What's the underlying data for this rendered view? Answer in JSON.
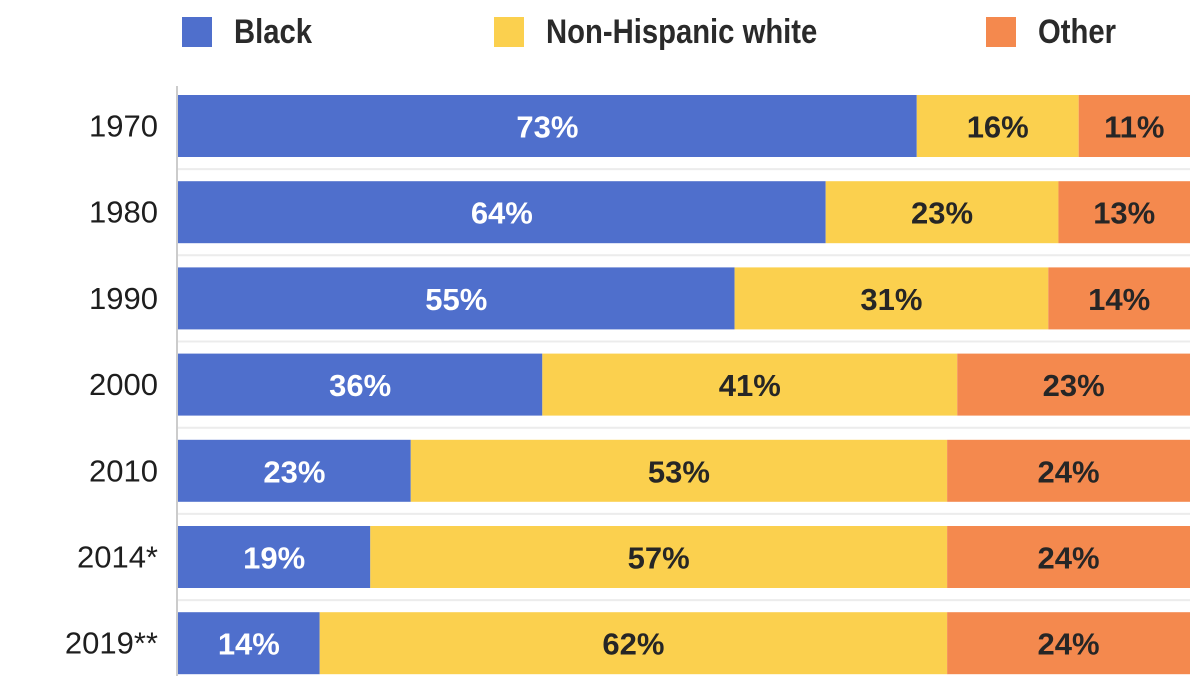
{
  "chart_data": {
    "type": "bar",
    "orientation": "horizontal",
    "stacked": true,
    "categories": [
      "1970",
      "1980",
      "1990",
      "2000",
      "2010",
      "2014*",
      "2019**"
    ],
    "series": [
      {
        "name": "Black",
        "color": "#4f6fcc",
        "label_color": "#ffffff",
        "values": [
          73,
          64,
          55,
          36,
          23,
          19,
          14
        ]
      },
      {
        "name": "Non-Hispanic white",
        "color": "#fbd04e",
        "label_color": "#262626",
        "values": [
          16,
          23,
          31,
          41,
          53,
          57,
          62
        ]
      },
      {
        "name": "Other",
        "color": "#f4894e",
        "label_color": "#262626",
        "values": [
          11,
          13,
          14,
          23,
          24,
          24,
          24
        ]
      }
    ],
    "value_labels": [
      [
        "73%",
        "16%",
        "11%"
      ],
      [
        "64%",
        "23%",
        "13%"
      ],
      [
        "55%",
        "31%",
        "14%"
      ],
      [
        "36%",
        "41%",
        "23%"
      ],
      [
        "23%",
        "53%",
        "24%"
      ],
      [
        "19%",
        "57%",
        "24%"
      ],
      [
        "14%",
        "62%",
        "24%"
      ]
    ],
    "unit": "%",
    "xlim": [
      0,
      100
    ],
    "legend_position": "top",
    "grid": false
  }
}
